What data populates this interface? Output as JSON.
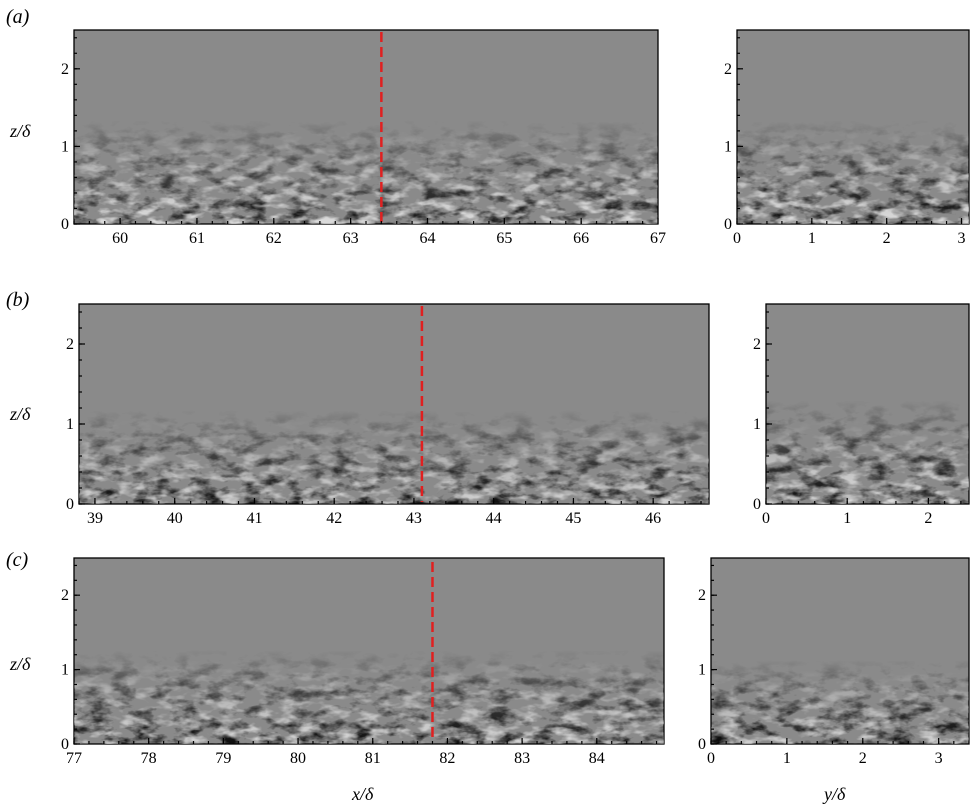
{
  "figure": {
    "z_axis_label": "z/δ",
    "x_axis_label": "x/δ",
    "y_axis_label": "y/δ",
    "colors": {
      "background_field": "#8a8a8a",
      "marker_line": "#e02020"
    }
  },
  "panels": [
    {
      "id": "a",
      "label": "(a)",
      "x_ticks": [
        "60",
        "61",
        "62",
        "63",
        "64",
        "65",
        "66",
        "67"
      ],
      "x_range": [
        59.4,
        67.0
      ],
      "marker_x": 63.4,
      "y_ticks": [
        "0",
        "1",
        "2",
        "3"
      ],
      "y_range": [
        0,
        3.1
      ],
      "z_ticks": [
        "0",
        "1",
        "2"
      ]
    },
    {
      "id": "b",
      "label": "(b)",
      "x_ticks": [
        "39",
        "40",
        "41",
        "42",
        "43",
        "44",
        "45",
        "46"
      ],
      "x_range": [
        38.8,
        46.7
      ],
      "marker_x": 43.1,
      "y_ticks": [
        "0",
        "1",
        "2"
      ],
      "y_range": [
        0,
        2.5
      ],
      "z_ticks": [
        "0",
        "1",
        "2"
      ]
    },
    {
      "id": "c",
      "label": "(c)",
      "x_ticks": [
        "77",
        "78",
        "79",
        "80",
        "81",
        "82",
        "83",
        "84"
      ],
      "x_range": [
        77.0,
        84.9
      ],
      "marker_x": 81.8,
      "y_ticks": [
        "0",
        "1",
        "2",
        "3"
      ],
      "y_range": [
        0,
        3.4
      ],
      "z_ticks": [
        "0",
        "1",
        "2"
      ]
    }
  ]
}
